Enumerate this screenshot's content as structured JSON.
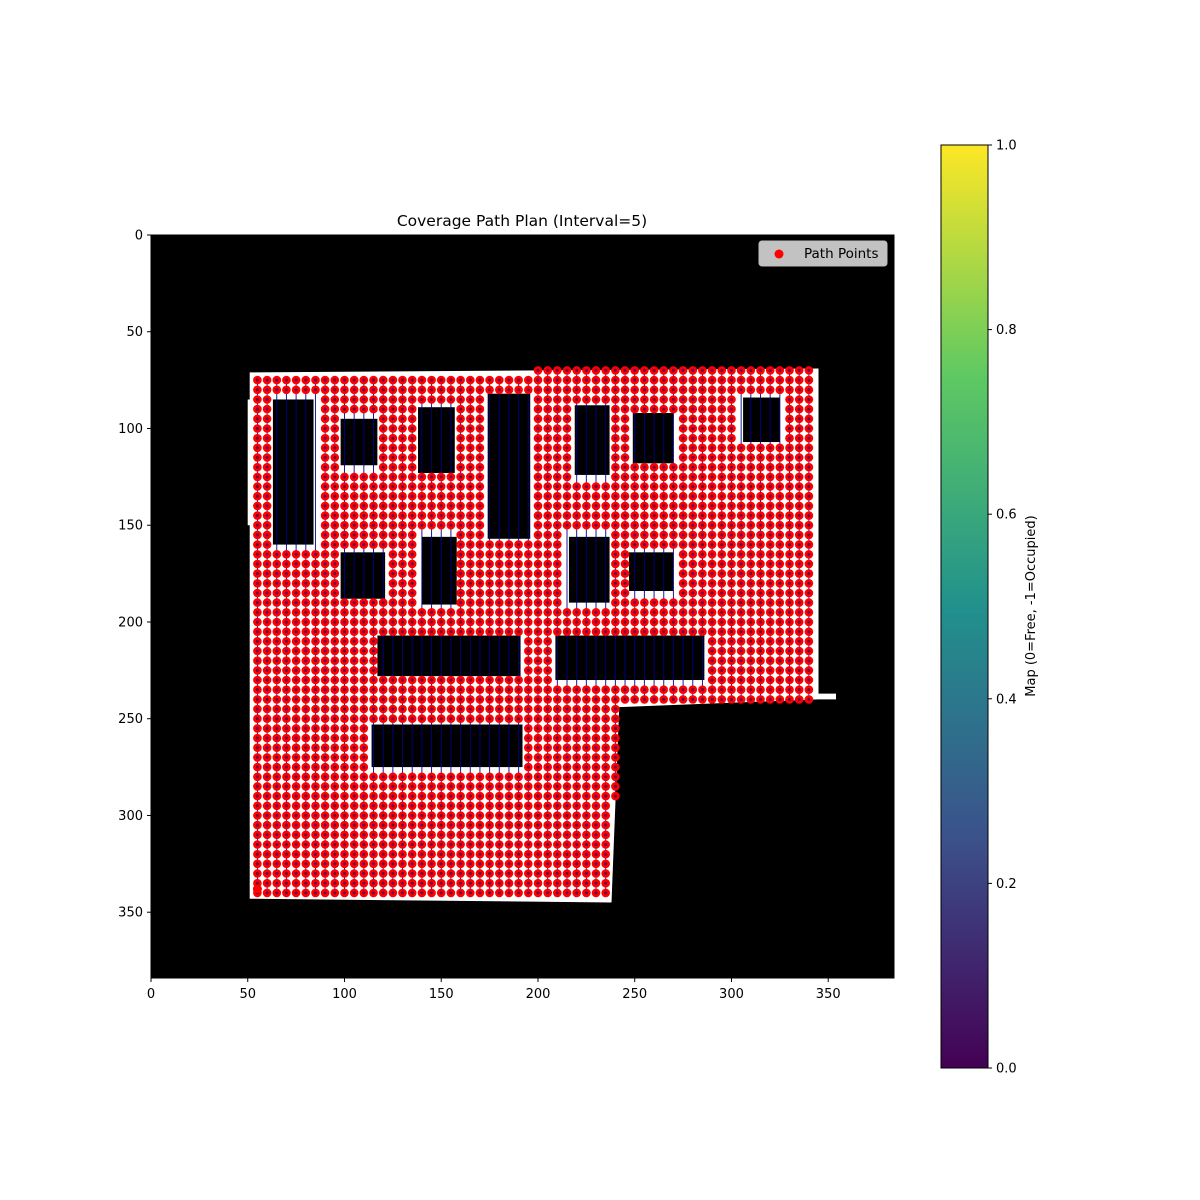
{
  "chart_data": {
    "type": "scatter",
    "title": "Coverage Path Plan (Interval=5)",
    "background": "occupancy grid map (black = occupied, white = free)",
    "xlim": [
      0,
      384
    ],
    "ylim": [
      384,
      0
    ],
    "xticks": [
      0,
      50,
      100,
      150,
      200,
      250,
      300,
      350
    ],
    "yticks": [
      0,
      50,
      100,
      150,
      200,
      250,
      300,
      350
    ],
    "interval": 5,
    "legend": {
      "label": "Path Points",
      "placement": "top-right"
    },
    "series": [
      {
        "name": "Path Points",
        "color": "#ff0000",
        "line_color": "#00008b",
        "pattern": "boustrophedon grid, spacing 5, over free cells",
        "start": [
          55,
          338
        ]
      }
    ],
    "free_region": {
      "outline": [
        [
          51,
          71
        ],
        [
          345,
          69
        ],
        [
          345,
          240
        ],
        [
          242,
          244
        ],
        [
          238,
          345
        ],
        [
          51,
          343
        ]
      ],
      "extra_patches": [
        [
          [
            50,
            85
          ],
          [
            52,
            85
          ],
          [
            52,
            150
          ],
          [
            50,
            150
          ]
        ],
        [
          [
            345,
            237
          ],
          [
            354,
            237
          ],
          [
            354,
            240
          ],
          [
            345,
            240
          ]
        ]
      ]
    },
    "obstacles": [
      [
        63,
        84,
        85,
        160
      ],
      [
        98,
        117,
        95,
        119
      ],
      [
        138,
        157,
        89,
        123
      ],
      [
        174,
        196,
        82,
        157
      ],
      [
        219,
        237,
        88,
        124
      ],
      [
        249,
        270,
        92,
        118
      ],
      [
        306,
        325,
        84,
        107
      ],
      [
        98,
        121,
        164,
        188
      ],
      [
        140,
        158,
        156,
        191
      ],
      [
        216,
        237,
        156,
        190
      ],
      [
        247,
        270,
        164,
        184
      ],
      [
        117,
        191,
        207,
        228
      ],
      [
        209,
        286,
        207,
        230
      ],
      [
        114,
        192,
        253,
        275
      ]
    ],
    "colorbar": {
      "label": "Map (0=Free, -1=Occupied)",
      "ticks": [
        "0.0",
        "0.2",
        "0.4",
        "0.6",
        "0.8",
        "1.0"
      ],
      "range": [
        0,
        1
      ],
      "cmap_stops": [
        "#440154",
        "#3b528b",
        "#21918c",
        "#5ec962",
        "#fde725"
      ]
    }
  }
}
